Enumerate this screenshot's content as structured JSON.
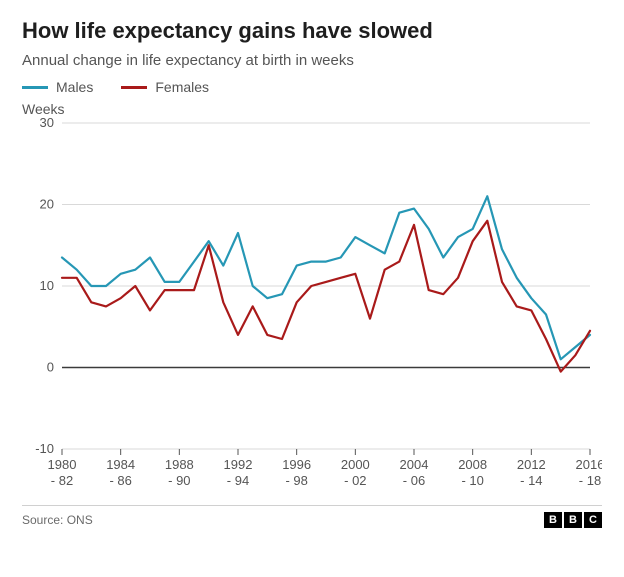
{
  "title": "How life expectancy gains have slowed",
  "subtitle": "Annual change in life expectancy at birth in weeks",
  "y_unit_label": "Weeks",
  "source_label": "Source: ONS",
  "logo_letters": [
    "B",
    "B",
    "C"
  ],
  "legend": {
    "males": "Males",
    "females": "Females"
  },
  "chart": {
    "type": "line",
    "background_color": "#ffffff",
    "grid_color": "#d9d9d9",
    "zero_line_color": "#3b3b3b",
    "axis_text_color": "#555555",
    "axis_font_size": 13,
    "title_font_size": 22,
    "subtitle_font_size": 15,
    "line_width": 2.2,
    "y_axis": {
      "min": -10,
      "max": 30,
      "ticks": [
        -10,
        0,
        10,
        20,
        30
      ]
    },
    "x_axis": {
      "index_min": 0,
      "index_max": 36,
      "tick_indices": [
        0,
        4,
        8,
        12,
        16,
        20,
        24,
        28,
        32,
        36
      ],
      "tick_labels_top": [
        "1980",
        "1984",
        "1988",
        "1992",
        "1996",
        "2000",
        "2004",
        "2008",
        "2012",
        "2016"
      ],
      "tick_labels_bottom": [
        "- 82",
        "- 86",
        "- 90",
        "- 94",
        "- 98",
        "- 02",
        "- 06",
        "- 10",
        "- 14",
        "- 18"
      ]
    },
    "series": [
      {
        "name": "Males",
        "color": "#2697b5",
        "y": [
          13.5,
          12.0,
          10.0,
          10.0,
          11.5,
          12.0,
          13.5,
          10.5,
          10.5,
          13.0,
          15.5,
          12.5,
          16.5,
          10.0,
          8.5,
          9.0,
          12.5,
          13.0,
          13.0,
          13.5,
          16.0,
          15.0,
          14.0,
          19.0,
          19.5,
          17.0,
          13.5,
          16.0,
          17.0,
          21.0,
          14.5,
          11.0,
          8.5,
          6.5,
          1.0,
          2.5,
          4.0
        ]
      },
      {
        "name": "Females",
        "color": "#a91a1a",
        "y": [
          11.0,
          11.0,
          8.0,
          7.5,
          8.5,
          10.0,
          7.0,
          9.5,
          9.5,
          9.5,
          15.0,
          8.0,
          4.0,
          7.5,
          4.0,
          3.5,
          8.0,
          10.0,
          10.5,
          11.0,
          11.5,
          6.0,
          12.0,
          13.0,
          17.5,
          9.5,
          9.0,
          11.0,
          15.5,
          18.0,
          10.5,
          7.5,
          7.0,
          3.5,
          -0.5,
          1.5,
          4.5
        ]
      }
    ]
  }
}
